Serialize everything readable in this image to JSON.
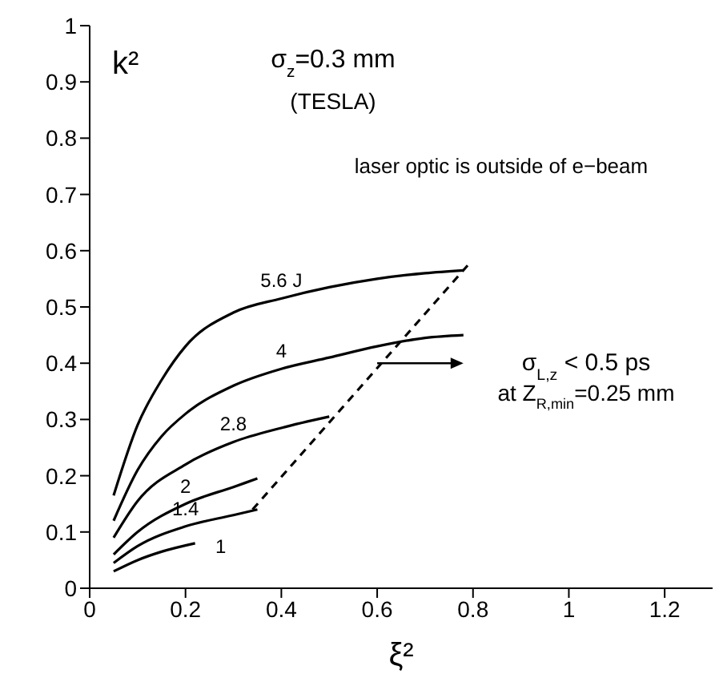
{
  "chart_data": {
    "type": "line",
    "xlabel": "ξ²",
    "ylabel": "k²",
    "annotations": [
      "σ$_{z}$=0.3 mm",
      "(TESLA)",
      "laser optic is outside of e−beam",
      "σ$_{L,z}$ < 0.5 ps",
      "at Z$_{R,min}$=0.25 mm"
    ],
    "series": [
      {
        "name": "5.6 J",
        "color": "#000000",
        "x": [
          0.05,
          0.1,
          0.15,
          0.2,
          0.3,
          0.4,
          0.5,
          0.6,
          0.7,
          0.78
        ],
        "values": [
          0.165,
          0.29,
          0.37,
          0.43,
          0.49,
          0.515,
          0.535,
          0.55,
          0.56,
          0.565
        ]
      },
      {
        "name": "4",
        "color": "#000000",
        "x": [
          0.05,
          0.1,
          0.15,
          0.2,
          0.3,
          0.4,
          0.5,
          0.6,
          0.7,
          0.78
        ],
        "values": [
          0.12,
          0.21,
          0.27,
          0.31,
          0.36,
          0.39,
          0.41,
          0.43,
          0.445,
          0.45
        ]
      },
      {
        "name": "2.8",
        "color": "#000000",
        "x": [
          0.05,
          0.1,
          0.2,
          0.3,
          0.4,
          0.5
        ],
        "values": [
          0.09,
          0.155,
          0.22,
          0.26,
          0.285,
          0.305
        ]
      },
      {
        "name": "2",
        "color": "#000000",
        "x": [
          0.05,
          0.1,
          0.2,
          0.3,
          0.35
        ],
        "values": [
          0.06,
          0.1,
          0.15,
          0.18,
          0.195
        ]
      },
      {
        "name": "1.4",
        "color": "#000000",
        "x": [
          0.05,
          0.1,
          0.2,
          0.3,
          0.35
        ],
        "values": [
          0.045,
          0.075,
          0.11,
          0.13,
          0.14
        ]
      },
      {
        "name": "1",
        "color": "#000000",
        "x": [
          0.05,
          0.1,
          0.15,
          0.22
        ],
        "values": [
          0.03,
          0.05,
          0.065,
          0.08
        ]
      },
      {
        "type": "line",
        "color": "#000000",
        "line_style": "dashed",
        "x": [
          0.34,
          0.79
        ],
        "values": [
          0.14,
          0.575
        ]
      }
    ],
    "xlim": [
      0,
      1.3
    ],
    "xticks": [
      0,
      0.2,
      0.4,
      0.6,
      0.8,
      1,
      1.2
    ],
    "ylim": [
      0,
      1
    ],
    "yticks": [
      0,
      0.1,
      0.2,
      0.3,
      0.4,
      0.5,
      0.6,
      0.7,
      0.8,
      0.9,
      1
    ],
    "grid": false,
    "legend": false,
    "marker": "none"
  }
}
